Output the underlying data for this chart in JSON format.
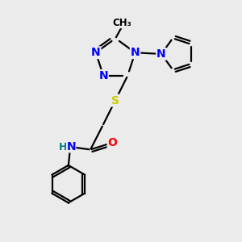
{
  "background_color": "#ebebeb",
  "atom_colors": {
    "N": "#0000ff",
    "O": "#ff0000",
    "S": "#cccc00",
    "C": "#000000",
    "H": "#008080"
  },
  "bond_color": "#000000",
  "lw": 1.6
}
